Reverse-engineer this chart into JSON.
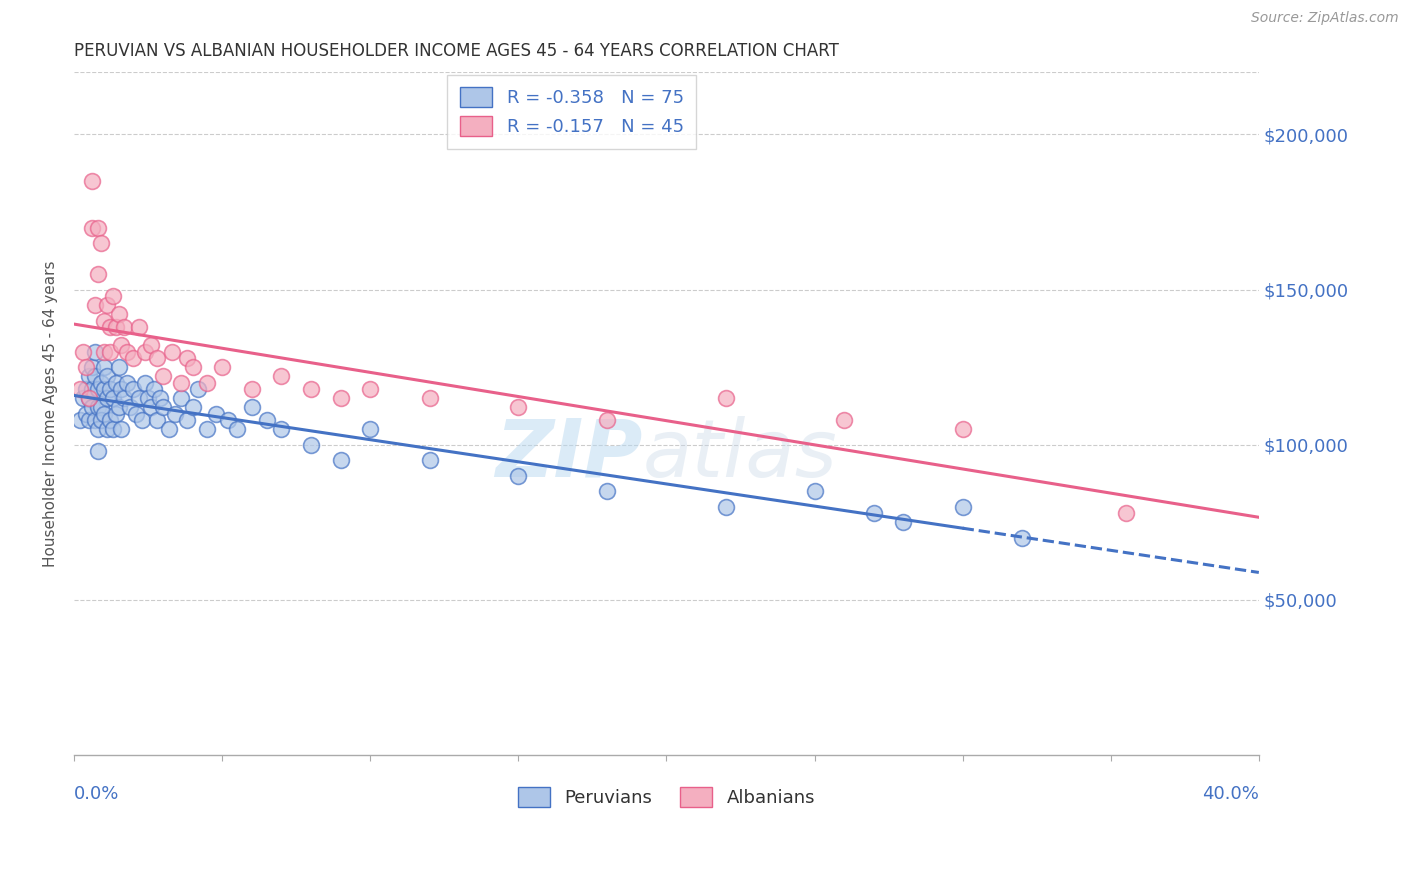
{
  "title": "PERUVIAN VS ALBANIAN HOUSEHOLDER INCOME AGES 45 - 64 YEARS CORRELATION CHART",
  "source": "Source: ZipAtlas.com",
  "ylabel": "Householder Income Ages 45 - 64 years",
  "xlim": [
    0.0,
    0.4
  ],
  "ylim": [
    0,
    220000
  ],
  "yticks": [
    50000,
    100000,
    150000,
    200000
  ],
  "ytick_labels": [
    "$50,000",
    "$100,000",
    "$150,000",
    "$200,000"
  ],
  "peru_color": "#aec6e8",
  "alb_color": "#f4afc0",
  "peru_line_color": "#4472c4",
  "alb_line_color": "#e8608a",
  "watermark_zip": "ZIP",
  "watermark_atlas": "atlas",
  "peru_scatter_x": [
    0.002,
    0.003,
    0.004,
    0.004,
    0.005,
    0.005,
    0.005,
    0.006,
    0.006,
    0.006,
    0.007,
    0.007,
    0.007,
    0.008,
    0.008,
    0.008,
    0.008,
    0.009,
    0.009,
    0.009,
    0.01,
    0.01,
    0.01,
    0.011,
    0.011,
    0.011,
    0.012,
    0.012,
    0.013,
    0.013,
    0.014,
    0.014,
    0.015,
    0.015,
    0.016,
    0.016,
    0.017,
    0.018,
    0.019,
    0.02,
    0.021,
    0.022,
    0.023,
    0.024,
    0.025,
    0.026,
    0.027,
    0.028,
    0.029,
    0.03,
    0.032,
    0.034,
    0.036,
    0.038,
    0.04,
    0.042,
    0.045,
    0.048,
    0.052,
    0.055,
    0.06,
    0.065,
    0.07,
    0.08,
    0.09,
    0.1,
    0.12,
    0.15,
    0.18,
    0.22,
    0.25,
    0.27,
    0.28,
    0.3,
    0.32
  ],
  "peru_scatter_y": [
    108000,
    115000,
    110000,
    118000,
    122000,
    108000,
    115000,
    125000,
    118000,
    112000,
    130000,
    122000,
    108000,
    118000,
    112000,
    105000,
    98000,
    120000,
    112000,
    108000,
    125000,
    118000,
    110000,
    122000,
    115000,
    105000,
    118000,
    108000,
    115000,
    105000,
    120000,
    110000,
    125000,
    112000,
    118000,
    105000,
    115000,
    120000,
    112000,
    118000,
    110000,
    115000,
    108000,
    120000,
    115000,
    112000,
    118000,
    108000,
    115000,
    112000,
    105000,
    110000,
    115000,
    108000,
    112000,
    118000,
    105000,
    110000,
    108000,
    105000,
    112000,
    108000,
    105000,
    100000,
    95000,
    105000,
    95000,
    90000,
    85000,
    80000,
    85000,
    78000,
    75000,
    80000,
    70000
  ],
  "alb_scatter_x": [
    0.002,
    0.003,
    0.004,
    0.005,
    0.006,
    0.006,
    0.007,
    0.008,
    0.008,
    0.009,
    0.01,
    0.01,
    0.011,
    0.012,
    0.012,
    0.013,
    0.014,
    0.015,
    0.016,
    0.017,
    0.018,
    0.02,
    0.022,
    0.024,
    0.026,
    0.028,
    0.03,
    0.033,
    0.036,
    0.038,
    0.04,
    0.045,
    0.05,
    0.06,
    0.07,
    0.08,
    0.09,
    0.1,
    0.12,
    0.15,
    0.18,
    0.22,
    0.26,
    0.3,
    0.355
  ],
  "alb_scatter_y": [
    118000,
    130000,
    125000,
    115000,
    185000,
    170000,
    145000,
    155000,
    170000,
    165000,
    130000,
    140000,
    145000,
    130000,
    138000,
    148000,
    138000,
    142000,
    132000,
    138000,
    130000,
    128000,
    138000,
    130000,
    132000,
    128000,
    122000,
    130000,
    120000,
    128000,
    125000,
    120000,
    125000,
    118000,
    122000,
    118000,
    115000,
    118000,
    115000,
    112000,
    108000,
    115000,
    108000,
    105000,
    78000
  ],
  "peru_line_x_solid_end": 0.3,
  "peru_line_x_dashed_end": 0.4,
  "alb_line_x_end": 0.4
}
